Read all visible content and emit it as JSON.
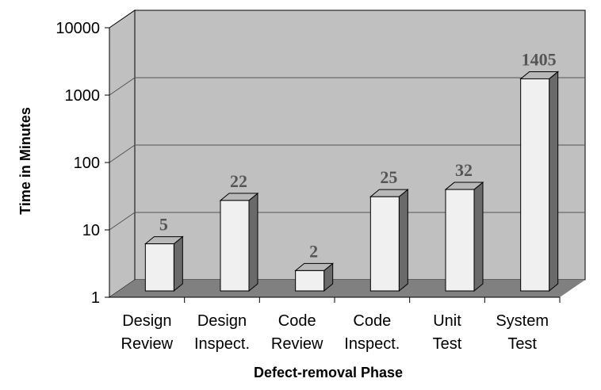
{
  "chart_data": {
    "type": "bar",
    "categories": [
      [
        "Design",
        "Review"
      ],
      [
        "Design",
        "Inspect."
      ],
      [
        "Code",
        "Review"
      ],
      [
        "Code",
        "Inspect."
      ],
      [
        "Unit",
        "Test"
      ],
      [
        "System",
        "Test"
      ]
    ],
    "values": [
      5,
      22,
      2,
      25,
      32,
      1405
    ],
    "data_labels": [
      "5",
      "22",
      "2",
      "25",
      "32",
      "1405"
    ],
    "xlabel": "Defect-removal Phase",
    "ylabel": "Time in Minutes",
    "yscale": "log",
    "ylim": [
      1,
      10000
    ],
    "yticks": [
      "1",
      "10",
      "100",
      "1000",
      "10000"
    ],
    "style": "3d-column",
    "grid": true,
    "colors": {
      "wall": "#c0c0c0",
      "floor": "#808080",
      "bar_front": "#f0f0f0",
      "bar_side": "#6a6a6a",
      "bar_top": "#b8b8b8",
      "data_label": "#555555"
    }
  }
}
